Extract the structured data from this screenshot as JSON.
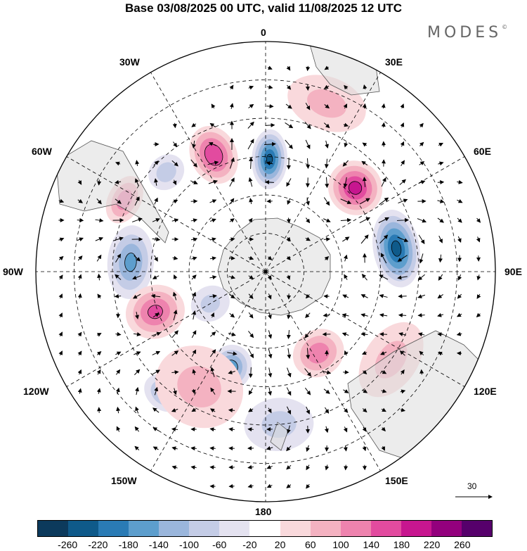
{
  "title": "Base 03/08/2025 00 UTC, valid 11/08/2025 12 UTC",
  "logo": "MODES",
  "logo_mark": "©",
  "longitude_labels": {
    "deg0": "0",
    "deg30e": "30E",
    "deg60e": "60E",
    "deg90e": "90E",
    "deg120e": "120E",
    "deg150e": "150E",
    "deg180": "180",
    "deg150w": "150W",
    "deg120w": "120W",
    "deg90w": "90W",
    "deg60w": "60W",
    "deg30w": "30W"
  },
  "vector_reference": "30",
  "colorbar": {
    "colors": [
      "#0c3a5c",
      "#0f5a8a",
      "#2a7bb5",
      "#5d9ecd",
      "#9ab6dc",
      "#c4cce6",
      "#e4e2f0",
      "#ffffff",
      "#f9d9dc",
      "#f4b2c1",
      "#ee83ae",
      "#e24b9f",
      "#c7168f",
      "#93007d",
      "#56006b"
    ],
    "ticks": [
      "-260",
      "-220",
      "-180",
      "-140",
      "-100",
      "-60",
      "-20",
      "20",
      "60",
      "100",
      "140",
      "180",
      "220",
      "260"
    ]
  },
  "anomaly_fields": [
    {
      "sign": "negative",
      "peak": -220,
      "lon": 2,
      "lat": -46,
      "r_lon": 7,
      "r_lat": 9
    },
    {
      "sign": "positive",
      "peak": 190,
      "lon": 47,
      "lat": -42,
      "r_lon": 10,
      "r_lat": 8
    },
    {
      "sign": "negative",
      "peak": -230,
      "lon": 80,
      "lat": -38,
      "r_lon": 13,
      "r_lat": 7
    },
    {
      "sign": "positive",
      "peak": 170,
      "lon": -24,
      "lat": -40,
      "r_lon": 8,
      "r_lat": 9
    },
    {
      "sign": "positive",
      "peak": 120,
      "lon": -63,
      "lat": -28,
      "r_lon": 7,
      "r_lat": 5
    },
    {
      "sign": "negative",
      "peak": -140,
      "lon": -86,
      "lat": -37,
      "r_lon": 12,
      "r_lat": 7
    },
    {
      "sign": "negative",
      "peak": -70,
      "lon": -45,
      "lat": -35,
      "r_lon": 6,
      "r_lat": 5
    },
    {
      "sign": "positive",
      "peak": 140,
      "lon": -110,
      "lat": -44,
      "r_lon": 10,
      "r_lat": 9
    },
    {
      "sign": "negative",
      "peak": -160,
      "lon": -160,
      "lat": -50,
      "r_lon": 9,
      "r_lat": 7
    },
    {
      "sign": "positive",
      "peak": 120,
      "lon": 147,
      "lat": -52,
      "r_lon": 12,
      "r_lat": 7
    },
    {
      "sign": "positive",
      "peak": 60,
      "lon": 125,
      "lat": -30,
      "r_lon": 12,
      "r_lat": 8
    },
    {
      "sign": "negative",
      "peak": -100,
      "lon": -140,
      "lat": -28,
      "r_lon": 6,
      "r_lat": 5
    },
    {
      "sign": "positive",
      "peak": 60,
      "lon": -150,
      "lat": -38,
      "r_lon": 15,
      "r_lat": 12
    },
    {
      "sign": "negative",
      "peak": -60,
      "lon": 175,
      "lat": -30,
      "r_lon": 10,
      "r_lat": 8
    },
    {
      "sign": "positive",
      "peak": 60,
      "lon": 20,
      "lat": -20,
      "r_lon": 10,
      "r_lat": 8
    },
    {
      "sign": "negative",
      "peak": -60,
      "lon": -120,
      "lat": -65,
      "r_lon": 12,
      "r_lat": 6
    }
  ]
}
